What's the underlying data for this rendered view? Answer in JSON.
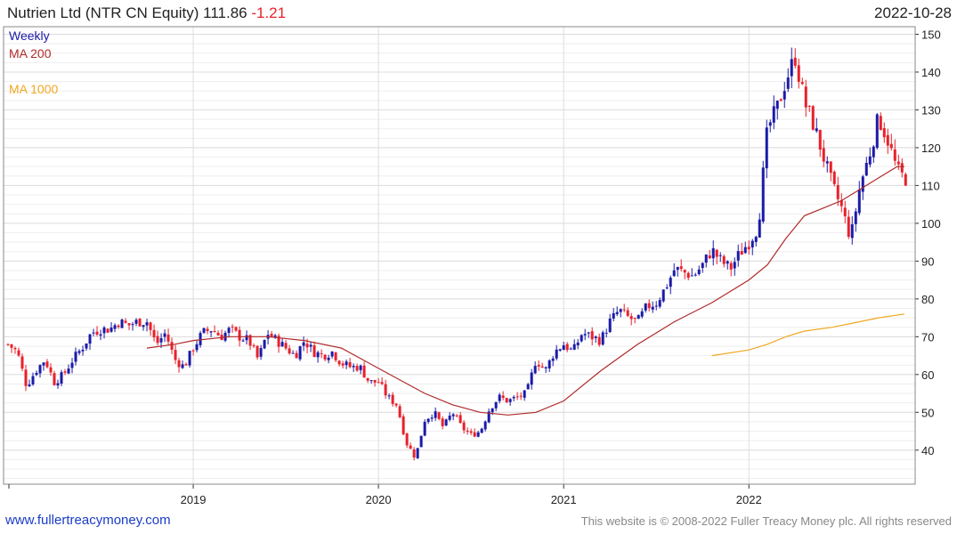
{
  "header": {
    "name": "Nutrien Ltd (NTR CN Equity)",
    "last": "111.86",
    "change": "-1.21",
    "date": "2022-10-28"
  },
  "legend": {
    "weekly": "Weekly",
    "ma200": "MA 200",
    "ma1000": "MA 1000"
  },
  "footer": {
    "site": "www.fullertreacymoney.com",
    "copyright": "This website is © 2008-2022 Fuller Treacy Money plc. All rights reserved"
  },
  "colors": {
    "up": "#1a1aa8",
    "down": "#e8202a",
    "ma200": "#b02a2a",
    "ma1000": "#f0a820",
    "grid": "#dddddd",
    "weekly_label": "#1a1aa8"
  },
  "chart_data": {
    "type": "candlestick",
    "interval": "weekly",
    "x_range": [
      2018.0,
      2022.84
    ],
    "ylim": [
      31,
      152
    ],
    "y_ticks": [
      40,
      50,
      60,
      70,
      80,
      90,
      100,
      110,
      120,
      130,
      140,
      150
    ],
    "x_tick_labels": [
      "2019",
      "2020",
      "2021",
      "2022"
    ],
    "grid": true,
    "axis_side": "right",
    "close_path": [
      [
        2018.0,
        68
      ],
      [
        2018.05,
        66
      ],
      [
        2018.1,
        57
      ],
      [
        2018.15,
        61
      ],
      [
        2018.2,
        64
      ],
      [
        2018.25,
        58
      ],
      [
        2018.3,
        60
      ],
      [
        2018.35,
        64
      ],
      [
        2018.4,
        67
      ],
      [
        2018.45,
        71
      ],
      [
        2018.5,
        72
      ],
      [
        2018.55,
        72
      ],
      [
        2018.6,
        74
      ],
      [
        2018.65,
        73
      ],
      [
        2018.7,
        74
      ],
      [
        2018.75,
        74
      ],
      [
        2018.8,
        68
      ],
      [
        2018.85,
        71
      ],
      [
        2018.9,
        64
      ],
      [
        2018.95,
        62
      ],
      [
        2019.0,
        67
      ],
      [
        2019.05,
        71
      ],
      [
        2019.1,
        72
      ],
      [
        2019.15,
        70
      ],
      [
        2019.2,
        72
      ],
      [
        2019.25,
        70
      ],
      [
        2019.3,
        69
      ],
      [
        2019.35,
        64
      ],
      [
        2019.4,
        71
      ],
      [
        2019.45,
        69
      ],
      [
        2019.5,
        67
      ],
      [
        2019.55,
        65
      ],
      [
        2019.6,
        69
      ],
      [
        2019.65,
        66
      ],
      [
        2019.7,
        65
      ],
      [
        2019.75,
        66
      ],
      [
        2019.8,
        63
      ],
      [
        2019.85,
        62
      ],
      [
        2019.9,
        62
      ],
      [
        2019.95,
        58
      ],
      [
        2020.0,
        58
      ],
      [
        2020.05,
        54
      ],
      [
        2020.1,
        52
      ],
      [
        2020.15,
        42
      ],
      [
        2020.2,
        38
      ],
      [
        2020.25,
        48
      ],
      [
        2020.3,
        50
      ],
      [
        2020.35,
        46
      ],
      [
        2020.4,
        50
      ],
      [
        2020.45,
        46
      ],
      [
        2020.5,
        44
      ],
      [
        2020.55,
        45
      ],
      [
        2020.6,
        51
      ],
      [
        2020.65,
        54
      ],
      [
        2020.7,
        53
      ],
      [
        2020.75,
        54
      ],
      [
        2020.8,
        55
      ],
      [
        2020.85,
        64
      ],
      [
        2020.9,
        61
      ],
      [
        2020.95,
        66
      ],
      [
        2021.0,
        68
      ],
      [
        2021.05,
        66
      ],
      [
        2021.1,
        71
      ],
      [
        2021.15,
        70
      ],
      [
        2021.2,
        69
      ],
      [
        2021.25,
        74
      ],
      [
        2021.3,
        77
      ],
      [
        2021.35,
        75
      ],
      [
        2021.4,
        74
      ],
      [
        2021.45,
        78
      ],
      [
        2021.5,
        79
      ],
      [
        2021.55,
        83
      ],
      [
        2021.6,
        88
      ],
      [
        2021.65,
        87
      ],
      [
        2021.7,
        86
      ],
      [
        2021.75,
        89
      ],
      [
        2021.8,
        93
      ],
      [
        2021.85,
        90
      ],
      [
        2021.9,
        88
      ],
      [
        2021.95,
        92
      ],
      [
        2022.0,
        95
      ],
      [
        2022.05,
        99
      ],
      [
        2022.1,
        125
      ],
      [
        2022.15,
        130
      ],
      [
        2022.2,
        138
      ],
      [
        2022.25,
        144
      ],
      [
        2022.3,
        132
      ],
      [
        2022.35,
        126
      ],
      [
        2022.4,
        118
      ],
      [
        2022.45,
        110
      ],
      [
        2022.5,
        104
      ],
      [
        2022.55,
        96
      ],
      [
        2022.6,
        110
      ],
      [
        2022.65,
        118
      ],
      [
        2022.7,
        128
      ],
      [
        2022.75,
        122
      ],
      [
        2022.8,
        114
      ],
      [
        2022.84,
        111.86
      ]
    ],
    "ma200_path": [
      [
        2018.75,
        67
      ],
      [
        2018.9,
        68
      ],
      [
        2019.0,
        69
      ],
      [
        2019.2,
        70
      ],
      [
        2019.4,
        70
      ],
      [
        2019.6,
        69
      ],
      [
        2019.8,
        67
      ],
      [
        2019.95,
        63
      ],
      [
        2020.1,
        59
      ],
      [
        2020.25,
        55
      ],
      [
        2020.4,
        52
      ],
      [
        2020.55,
        50
      ],
      [
        2020.7,
        49.3
      ],
      [
        2020.85,
        50
      ],
      [
        2021.0,
        53
      ],
      [
        2021.2,
        61
      ],
      [
        2021.4,
        68
      ],
      [
        2021.6,
        74
      ],
      [
        2021.8,
        79
      ],
      [
        2022.0,
        85
      ],
      [
        2022.1,
        89
      ],
      [
        2022.2,
        96
      ],
      [
        2022.3,
        102
      ],
      [
        2022.4,
        104
      ],
      [
        2022.5,
        106
      ],
      [
        2022.6,
        109
      ],
      [
        2022.7,
        112
      ],
      [
        2022.8,
        115
      ],
      [
        2022.84,
        115
      ]
    ],
    "ma1000_path": [
      [
        2021.8,
        65
      ],
      [
        2022.0,
        66.5
      ],
      [
        2022.1,
        68
      ],
      [
        2022.2,
        70
      ],
      [
        2022.3,
        71.5
      ],
      [
        2022.45,
        72.5
      ],
      [
        2022.55,
        73.5
      ],
      [
        2022.7,
        75
      ],
      [
        2022.84,
        76
      ]
    ]
  }
}
